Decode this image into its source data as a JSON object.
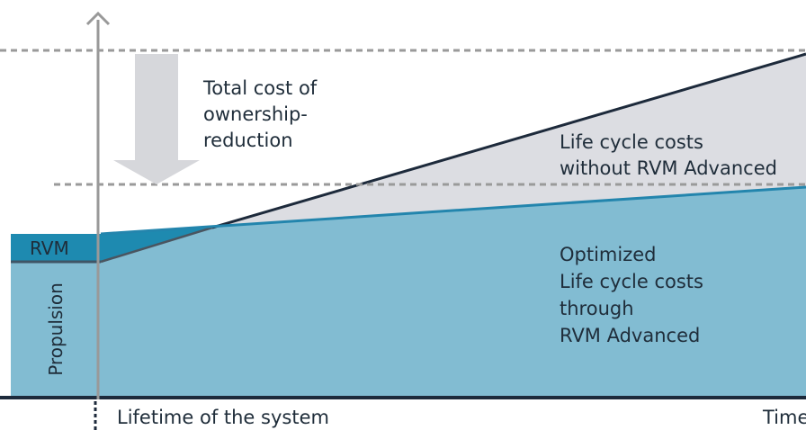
{
  "labels": {
    "tco_reduction": "Total cost of ownership-reduction",
    "lcc_without": "Life cycle costs\nwithout RVM Advanced",
    "optimized": "Optimized\nLife cycle costs\nthrough\nRVM Advanced",
    "rvm": "RVM",
    "propulsion": "Propulsion",
    "lifetime": "Lifetime of the system",
    "time": "Time"
  },
  "colors": {
    "optimized_fill": "#82bcd2",
    "rvm_fill": "#1e8ab0",
    "gap_fill": "#dcdde2",
    "arrow_fill": "#d6d7db",
    "navy_line": "#1d2a3b",
    "blue_line": "#2385ad",
    "axis": "#999999",
    "dashed": "#9a9a9a",
    "baseline": "#1d2a3b",
    "text": "#1f2d3a"
  }
}
